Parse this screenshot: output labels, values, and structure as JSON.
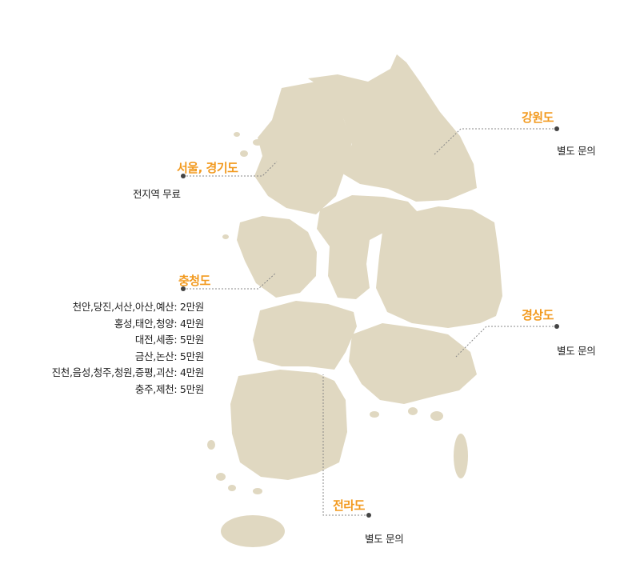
{
  "colors": {
    "land": "#e0d8c1",
    "region_label": "#f29a1f",
    "leader_line": "#888888",
    "dot": "#444444",
    "text": "#222222"
  },
  "regions": {
    "gyeonggi": {
      "name": "서울, 경기도",
      "note": "전지역 무료"
    },
    "gangwon": {
      "name": "강원도",
      "note": "별도 문의"
    },
    "chungcheong": {
      "name": "충청도",
      "notes": [
        "천안,당진,서산,아산,예산: 2만원",
        "홍성,태안,청양: 4만원",
        "대전,세종: 5만원",
        "금산,논산: 5만원",
        "진천,음성,청주,청원,증평,괴산: 4만원",
        "충주,제천: 5만원"
      ]
    },
    "gyeongsang": {
      "name": "경상도",
      "note": "별도 문의"
    },
    "jeolla": {
      "name": "전라도",
      "note": "별도 문의"
    }
  }
}
